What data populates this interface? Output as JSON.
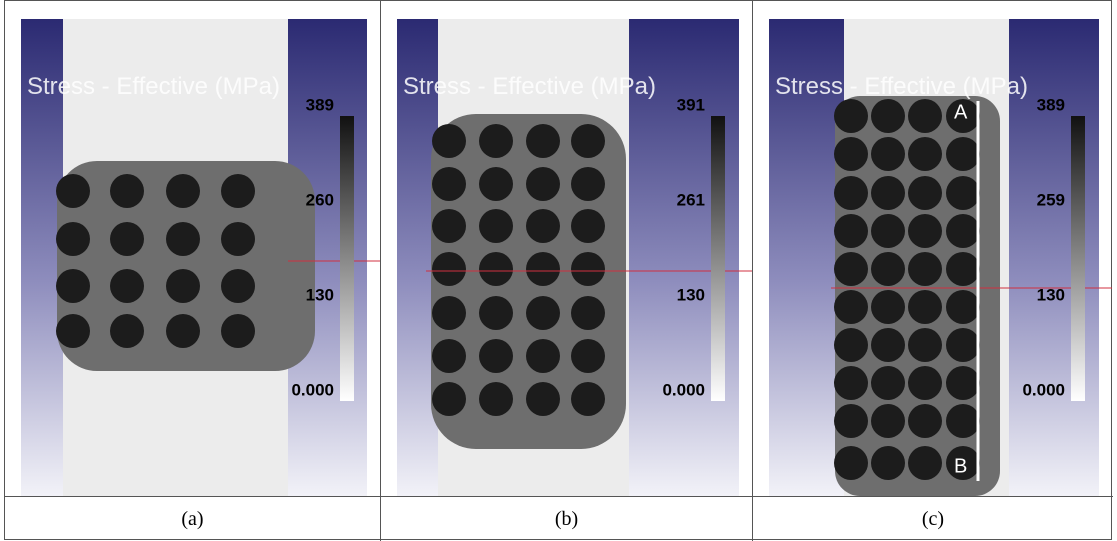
{
  "panels": [
    {
      "title": "Stress - Effective (MPa)",
      "colorbar_labels": [
        "389",
        "260",
        "130",
        "0.000"
      ],
      "caption": "(a)"
    },
    {
      "title": "Stress - Effective (MPa)",
      "colorbar_labels": [
        "391",
        "261",
        "130",
        "0.000"
      ],
      "caption": "(b)"
    },
    {
      "title": "Stress - Effective (MPa)",
      "colorbar_labels": [
        "389",
        "259",
        "130",
        "0.000"
      ],
      "caption": "(c)",
      "markers": [
        "A",
        "B"
      ]
    }
  ]
}
